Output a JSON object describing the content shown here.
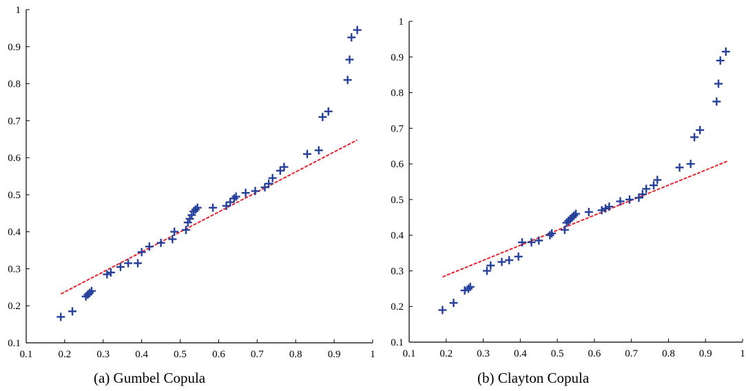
{
  "chart_data": [
    {
      "type": "scatter",
      "caption": "(a) Gumbel Copula",
      "xlim": [
        0.1,
        1
      ],
      "ylim": [
        0.1,
        1
      ],
      "x_ticks": [
        "0.1",
        "0.2",
        "0.3",
        "0.4",
        "0.5",
        "0.6",
        "0.7",
        "0.8",
        "0.9",
        "1"
      ],
      "y_ticks": [
        "0.1",
        "0.2",
        "0.3",
        "0.4",
        "0.5",
        "0.6",
        "0.7",
        "0.8",
        "0.9",
        "1"
      ],
      "grid": false,
      "fit_line": {
        "x": [
          0.19,
          0.96
        ],
        "y": [
          0.232,
          0.648
        ],
        "color": "#e8222e"
      },
      "marker_color": "#25409a",
      "points": {
        "x": [
          0.19,
          0.22,
          0.255,
          0.26,
          0.265,
          0.27,
          0.31,
          0.32,
          0.345,
          0.365,
          0.39,
          0.4,
          0.42,
          0.45,
          0.48,
          0.485,
          0.515,
          0.52,
          0.525,
          0.53,
          0.535,
          0.54,
          0.545,
          0.585,
          0.62,
          0.63,
          0.64,
          0.645,
          0.67,
          0.695,
          0.72,
          0.73,
          0.74,
          0.76,
          0.77,
          0.83,
          0.86,
          0.87,
          0.885,
          0.935,
          0.94,
          0.945,
          0.96
        ],
        "y": [
          0.17,
          0.185,
          0.225,
          0.23,
          0.235,
          0.24,
          0.285,
          0.29,
          0.305,
          0.315,
          0.315,
          0.345,
          0.36,
          0.37,
          0.38,
          0.4,
          0.405,
          0.425,
          0.435,
          0.445,
          0.455,
          0.46,
          0.465,
          0.465,
          0.47,
          0.48,
          0.49,
          0.495,
          0.505,
          0.51,
          0.52,
          0.53,
          0.545,
          0.565,
          0.575,
          0.61,
          0.62,
          0.71,
          0.725,
          0.81,
          0.865,
          0.925,
          0.945
        ]
      }
    },
    {
      "type": "scatter",
      "caption": "(b) Clayton Copula",
      "xlim": [
        0.1,
        1
      ],
      "ylim": [
        0.1,
        1
      ],
      "x_ticks": [
        "0.1",
        "0.2",
        "0.3",
        "0.4",
        "0.5",
        "0.6",
        "0.7",
        "0.8",
        "0.9",
        "1"
      ],
      "y_ticks": [
        "0.1",
        "0.2",
        "0.3",
        "0.4",
        "0.5",
        "0.6",
        "0.7",
        "0.8",
        "0.9",
        "1"
      ],
      "grid": false,
      "fit_line": {
        "x": [
          0.19,
          0.96
        ],
        "y": [
          0.283,
          0.608
        ],
        "color": "#e8222e"
      },
      "marker_color": "#25409a",
      "points": {
        "x": [
          0.19,
          0.22,
          0.25,
          0.26,
          0.265,
          0.31,
          0.32,
          0.35,
          0.37,
          0.395,
          0.405,
          0.43,
          0.45,
          0.48,
          0.485,
          0.52,
          0.525,
          0.53,
          0.535,
          0.54,
          0.545,
          0.55,
          0.585,
          0.62,
          0.63,
          0.64,
          0.67,
          0.695,
          0.72,
          0.73,
          0.74,
          0.76,
          0.77,
          0.83,
          0.86,
          0.87,
          0.885,
          0.93,
          0.935,
          0.94,
          0.955
        ],
        "y": [
          0.19,
          0.21,
          0.245,
          0.25,
          0.255,
          0.3,
          0.315,
          0.325,
          0.33,
          0.34,
          0.38,
          0.38,
          0.385,
          0.4,
          0.405,
          0.415,
          0.435,
          0.44,
          0.445,
          0.45,
          0.455,
          0.46,
          0.465,
          0.47,
          0.475,
          0.48,
          0.495,
          0.5,
          0.505,
          0.515,
          0.53,
          0.54,
          0.555,
          0.59,
          0.6,
          0.675,
          0.695,
          0.775,
          0.825,
          0.89,
          0.915
        ]
      }
    }
  ]
}
